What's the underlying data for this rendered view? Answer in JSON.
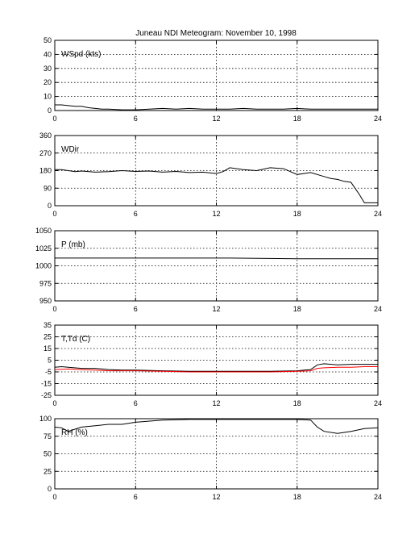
{
  "title": "Juneau NDI Meteogram:  November 10, 1998",
  "chart_data": [
    {
      "type": "line",
      "label": "WSpd (kts)",
      "xlim": [
        0,
        24
      ],
      "xticks": [
        0,
        6,
        12,
        18,
        24
      ],
      "ylim": [
        0,
        50
      ],
      "yticks": [
        0,
        10,
        20,
        30,
        40,
        50
      ],
      "grid": true,
      "series": [
        {
          "color": "#000000",
          "points": [
            [
              0,
              4
            ],
            [
              0.5,
              4
            ],
            [
              1,
              3.5
            ],
            [
              1.5,
              3
            ],
            [
              2,
              3
            ],
            [
              2.5,
              2
            ],
            [
              3,
              1.5
            ],
            [
              3.5,
              1
            ],
            [
              4,
              1
            ],
            [
              5,
              0.5
            ],
            [
              6,
              0.5
            ],
            [
              7,
              1
            ],
            [
              8,
              1.5
            ],
            [
              9,
              1
            ],
            [
              10,
              1.5
            ],
            [
              11,
              1
            ],
            [
              12,
              1
            ],
            [
              13,
              1
            ],
            [
              14,
              1.5
            ],
            [
              15,
              1
            ],
            [
              16,
              1
            ],
            [
              17,
              1
            ],
            [
              18,
              1.5
            ],
            [
              19,
              1
            ],
            [
              20,
              1
            ],
            [
              21,
              1
            ],
            [
              22,
              1
            ],
            [
              23,
              1
            ],
            [
              24,
              1
            ]
          ]
        }
      ]
    },
    {
      "type": "line",
      "label": "WDir",
      "xlim": [
        0,
        24
      ],
      "xticks": [
        0,
        6,
        12,
        18,
        24
      ],
      "ylim": [
        0,
        360
      ],
      "yticks": [
        0,
        90,
        180,
        270,
        360
      ],
      "grid": true,
      "series": [
        {
          "color": "#000000",
          "points": [
            [
              0,
              185
            ],
            [
              0.5,
              185
            ],
            [
              1,
              180
            ],
            [
              1.5,
              175
            ],
            [
              2,
              178
            ],
            [
              3,
              172
            ],
            [
              4,
              175
            ],
            [
              5,
              180
            ],
            [
              6,
              176
            ],
            [
              7,
              178
            ],
            [
              8,
              172
            ],
            [
              9,
              176
            ],
            [
              10,
              170
            ],
            [
              11,
              172
            ],
            [
              12,
              165
            ],
            [
              12.5,
              175
            ],
            [
              13,
              195
            ],
            [
              14,
              185
            ],
            [
              15,
              180
            ],
            [
              16,
              195
            ],
            [
              17,
              190
            ],
            [
              18,
              160
            ],
            [
              18.5,
              165
            ],
            [
              19,
              170
            ],
            [
              20,
              150
            ],
            [
              20.5,
              140
            ],
            [
              21,
              135
            ],
            [
              21.5,
              125
            ],
            [
              22,
              120
            ],
            [
              22.3,
              90
            ],
            [
              22.6,
              60
            ],
            [
              23,
              15
            ],
            [
              24,
              15
            ]
          ]
        }
      ]
    },
    {
      "type": "line",
      "label": "P (mb)",
      "xlim": [
        0,
        24
      ],
      "xticks": [
        0,
        6,
        12,
        18,
        24
      ],
      "ylim": [
        950,
        1050
      ],
      "yticks": [
        950,
        975,
        1000,
        1025,
        1050
      ],
      "grid": true,
      "series": [
        {
          "color": "#000000",
          "points": [
            [
              0,
              1011
            ],
            [
              4,
              1011
            ],
            [
              5,
              1011
            ],
            [
              12,
              1011
            ],
            [
              13,
              1011
            ],
            [
              18,
              1010
            ],
            [
              24,
              1010
            ]
          ]
        }
      ]
    },
    {
      "type": "line",
      "label": "T,Td (C)",
      "xlim": [
        0,
        24
      ],
      "xticks": [
        0,
        6,
        12,
        18,
        24
      ],
      "ylim": [
        -25,
        35
      ],
      "yticks": [
        -25,
        -15,
        -5,
        5,
        15,
        25,
        35
      ],
      "grid": true,
      "series": [
        {
          "color": "#000000",
          "points": [
            [
              0,
              -1
            ],
            [
              0.5,
              -0.5
            ],
            [
              1,
              -1
            ],
            [
              2,
              -2
            ],
            [
              3,
              -2
            ],
            [
              4,
              -3
            ],
            [
              5,
              -3.5
            ],
            [
              6,
              -3.5
            ],
            [
              8,
              -4
            ],
            [
              10,
              -4.5
            ],
            [
              12,
              -4.5
            ],
            [
              14,
              -4.5
            ],
            [
              16,
              -4.5
            ],
            [
              18,
              -4
            ],
            [
              19,
              -3
            ],
            [
              19.5,
              1
            ],
            [
              20,
              2
            ],
            [
              21,
              1
            ],
            [
              22,
              1.5
            ],
            [
              23,
              1.5
            ],
            [
              24,
              1.5
            ]
          ]
        },
        {
          "color": "#ff0000",
          "points": [
            [
              0,
              -3
            ],
            [
              1,
              -2.5
            ],
            [
              2,
              -3
            ],
            [
              3,
              -3.5
            ],
            [
              4,
              -4
            ],
            [
              5,
              -4
            ],
            [
              6,
              -4
            ],
            [
              8,
              -4.5
            ],
            [
              10,
              -5
            ],
            [
              12,
              -5
            ],
            [
              14,
              -5
            ],
            [
              16,
              -5
            ],
            [
              18,
              -4.5
            ],
            [
              19,
              -4
            ],
            [
              19.5,
              -2
            ],
            [
              20,
              -1.5
            ],
            [
              21,
              -1
            ],
            [
              22,
              -1
            ],
            [
              23,
              -0.5
            ],
            [
              24,
              -0.5
            ]
          ]
        }
      ]
    },
    {
      "type": "line",
      "label": "RH (%)",
      "xlim": [
        0,
        24
      ],
      "xticks": [
        0,
        6,
        12,
        18,
        24
      ],
      "ylim": [
        0,
        100
      ],
      "yticks": [
        0,
        25,
        50,
        75,
        100
      ],
      "grid": true,
      "series": [
        {
          "color": "#000000",
          "points": [
            [
              0,
              88
            ],
            [
              0.5,
              87
            ],
            [
              1,
              82
            ],
            [
              1.5,
              85
            ],
            [
              2,
              88
            ],
            [
              3,
              90
            ],
            [
              4,
              92
            ],
            [
              5,
              92
            ],
            [
              6,
              95
            ],
            [
              8,
              98
            ],
            [
              10,
              99
            ],
            [
              12,
              99
            ],
            [
              14,
              99
            ],
            [
              16,
              99
            ],
            [
              18,
              99
            ],
            [
              19,
              98
            ],
            [
              19.5,
              88
            ],
            [
              20,
              82
            ],
            [
              21,
              79
            ],
            [
              22,
              82
            ],
            [
              23,
              86
            ],
            [
              24,
              87
            ]
          ]
        }
      ]
    }
  ]
}
